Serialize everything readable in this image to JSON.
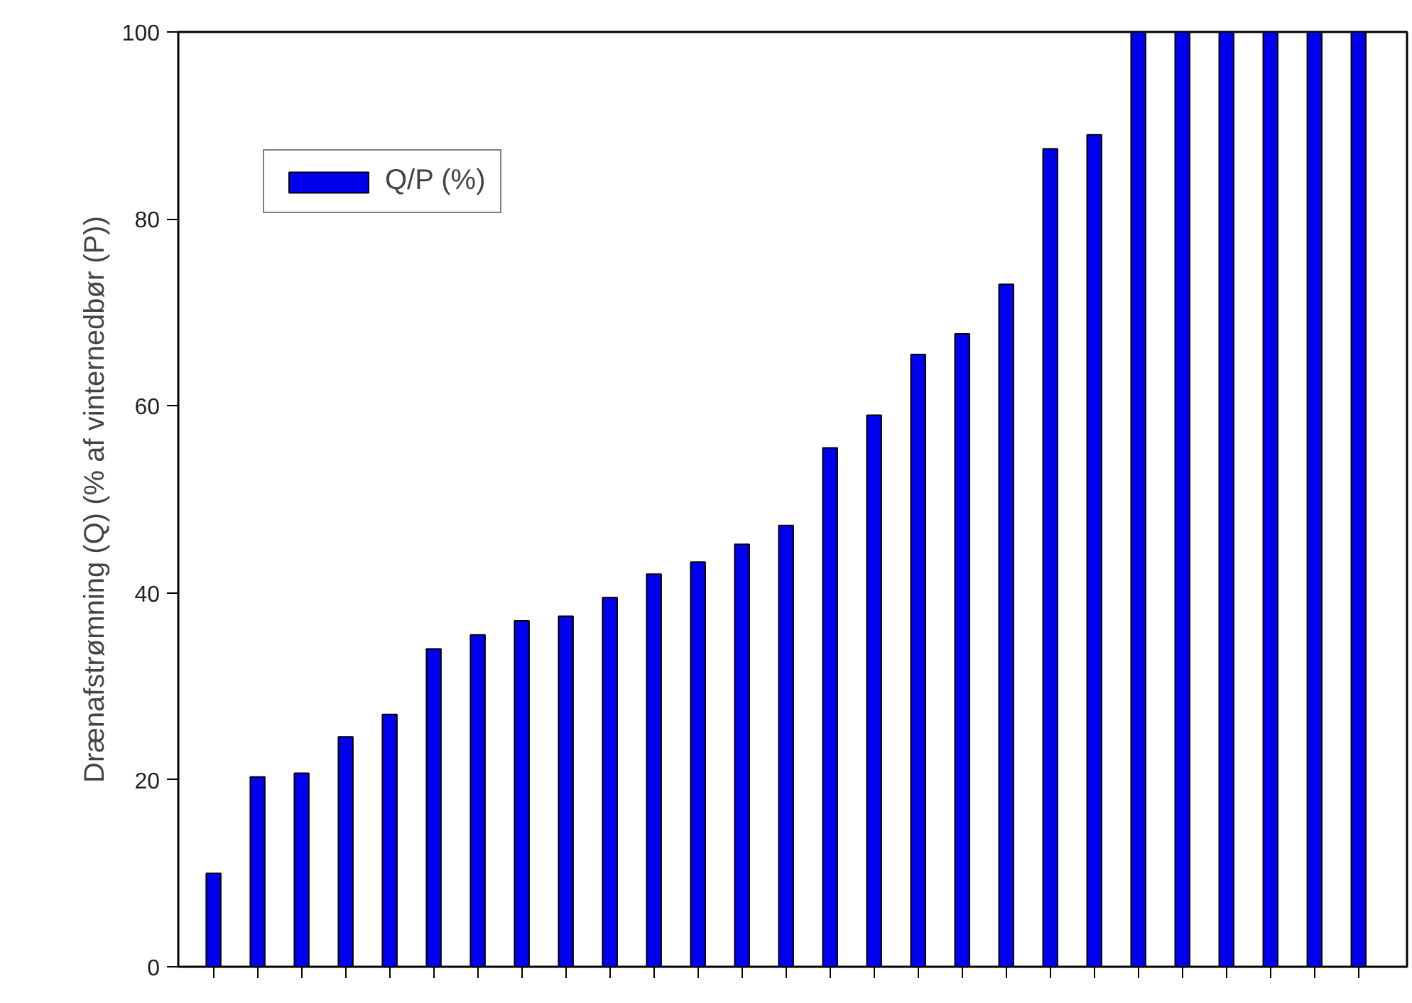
{
  "chart_data": {
    "type": "bar",
    "ylabel": "Drænafstrømning (Q) (% af vinternedbør (P))",
    "categories": [
      null,
      null,
      null,
      null,
      null,
      null,
      null,
      null,
      null,
      null,
      null,
      null,
      null,
      null,
      null,
      null,
      null,
      null,
      null,
      null,
      null,
      null,
      null,
      null,
      null,
      null,
      null
    ],
    "series": [
      {
        "name": "Q/P (%)",
        "color": "#0000ee",
        "values": [
          10,
          20.3,
          20.7,
          24.6,
          27,
          34,
          35.5,
          37,
          37.5,
          39.5,
          42,
          43.3,
          45.2,
          47.2,
          55.5,
          59,
          65.5,
          67.7,
          73,
          87.5,
          89,
          100,
          100,
          100,
          100,
          100,
          100
        ]
      }
    ],
    "ylim": [
      0,
      100
    ],
    "yticks": [
      0,
      20,
      40,
      60,
      80,
      100
    ],
    "grid": false,
    "legend": "top left"
  }
}
